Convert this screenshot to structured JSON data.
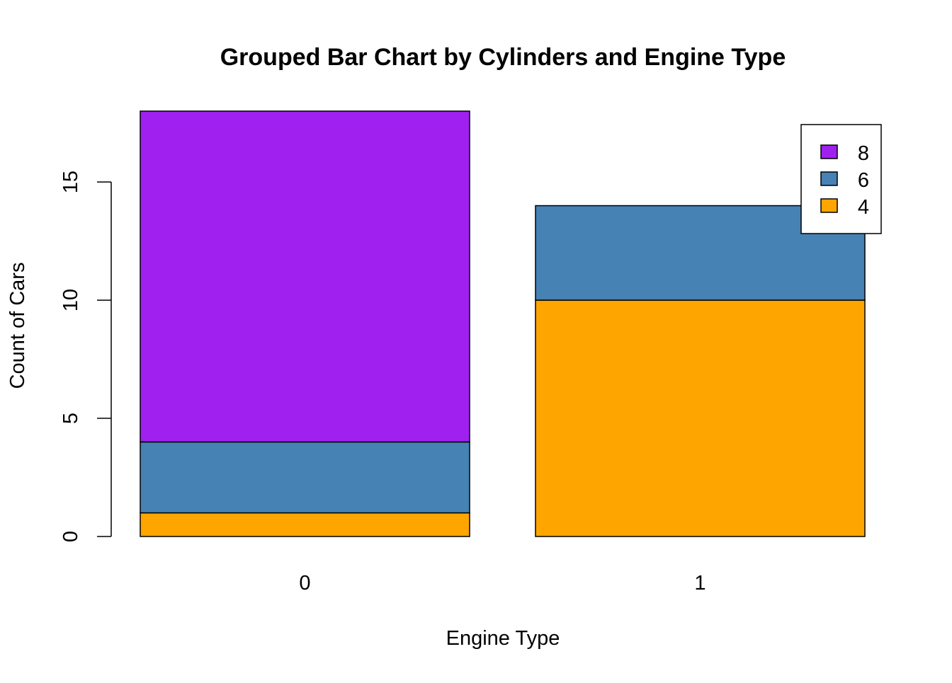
{
  "chart_data": {
    "type": "bar",
    "stacked": true,
    "title": "Grouped Bar Chart by Cylinders and Engine Type",
    "xlabel": "Engine Type",
    "ylabel": "Count of Cars",
    "categories": [
      "0",
      "1"
    ],
    "series": [
      {
        "name": "4",
        "color": "#FFA500",
        "values": [
          1,
          10
        ]
      },
      {
        "name": "6",
        "color": "#4682B4",
        "values": [
          3,
          4
        ]
      },
      {
        "name": "8",
        "color": "#A020F0",
        "values": [
          14,
          0
        ]
      }
    ],
    "ylim": [
      0,
      18
    ],
    "yticks": [
      0,
      5,
      10,
      15
    ],
    "grid": false,
    "legend": {
      "position": "top-right",
      "order": [
        "8",
        "6",
        "4"
      ]
    }
  }
}
